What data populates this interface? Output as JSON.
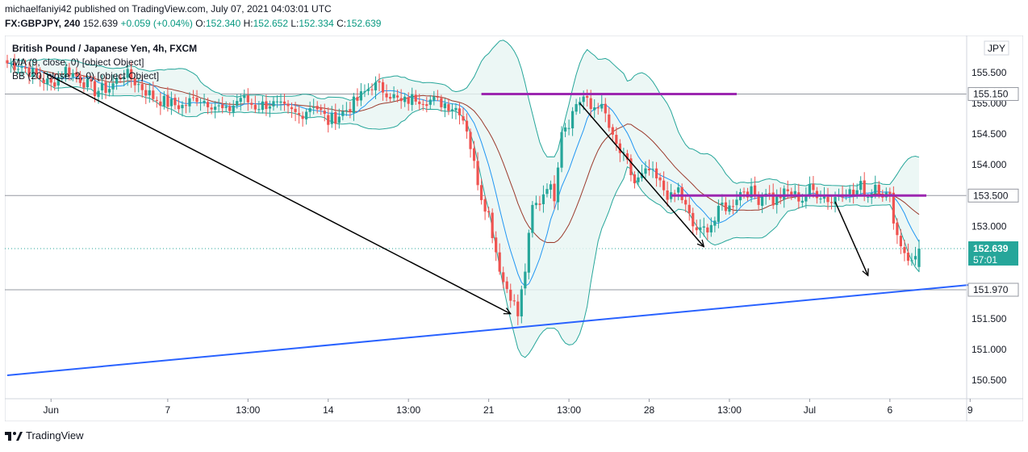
{
  "header": {
    "publish_text": "michaelfaniyi42 published on TradingView.com, July 07, 2021 04:03:01 UTC",
    "symbol": "FX:GBPJPY, 240",
    "last": "152.639",
    "change": "+0.059 (+0.04%)",
    "open_key": "O:",
    "open_val": "152.340",
    "high_key": "H:",
    "high_val": "152.652",
    "low_key": "L:",
    "low_val": "152.334",
    "close_key": "C:",
    "close_val": "152.639"
  },
  "legend": {
    "title": "British Pound / Japanese Yen, 4h, FXCM",
    "ma": "MA (9, close, 0) [object Object]",
    "bb": "BB (20, close, 2, 0) [object Object]"
  },
  "currency_badge": "JPY",
  "footer": {
    "brand": "TradingView"
  },
  "colors": {
    "up": "#26a69a",
    "down": "#ef5350",
    "bb_band": "#26a69a",
    "bb_fill": "#e7f5f2",
    "ma": "#2196f3",
    "basis": "#9b3a2c",
    "resistance": "#9c27b0",
    "support": "#2962ff",
    "arrow": "#000000",
    "price_label": "#26a69a"
  },
  "chart_data": {
    "type": "candlestick",
    "title": "British Pound / Japanese Yen, 4h, FXCM",
    "ylim": [
      150.2,
      156.1
    ],
    "y_ticks": [
      150.5,
      151.0,
      151.5,
      152.0,
      152.5,
      153.0,
      153.5,
      154.0,
      154.5,
      155.0,
      155.5
    ],
    "y_tick_labels": [
      "150.500",
      "151.000",
      "151.500",
      "152.000",
      "152.500",
      "153.000",
      "153.500",
      "154.000",
      "154.500",
      "155.000",
      "155.500"
    ],
    "x_ticks": [
      "Jun",
      "7",
      "13:00",
      "14",
      "13:00",
      "21",
      "13:00",
      "28",
      "13:00",
      "Jul",
      "6",
      "9"
    ],
    "x_tick_bar_index": [
      12,
      44,
      66,
      88,
      110,
      132,
      154,
      176,
      198,
      220,
      242,
      264
    ],
    "horizontal_levels": [
      {
        "value": 155.15,
        "label": "155.150"
      },
      {
        "value": 153.5,
        "label": "153.500"
      },
      {
        "value": 151.97,
        "label": "151.970"
      }
    ],
    "current_price": {
      "value": 152.639,
      "label": "152.639",
      "countdown": "57:01"
    },
    "resistance_segments": [
      {
        "from_bar": 130,
        "to_bar": 200,
        "value": 155.15
      },
      {
        "from_bar": 182,
        "to_bar": 252,
        "value": 153.5
      }
    ],
    "support_trendline": {
      "from_bar": 0,
      "from_value": 150.58,
      "to_bar": 264,
      "to_value": 152.05
    },
    "trend_arrows": [
      {
        "from_bar": 10,
        "from_value": 155.5,
        "to_bar": 138,
        "to_value": 151.58
      },
      {
        "from_bar": 157,
        "from_value": 155.0,
        "to_bar": 191,
        "to_value": 152.67
      },
      {
        "from_bar": 227,
        "from_value": 153.4,
        "to_bar": 236,
        "to_value": 152.2
      }
    ],
    "close_anchors": [
      [
        0,
        155.65
      ],
      [
        4,
        155.6
      ],
      [
        8,
        155.45
      ],
      [
        12,
        155.3
      ],
      [
        16,
        155.55
      ],
      [
        20,
        155.4
      ],
      [
        24,
        155.2
      ],
      [
        28,
        155.25
      ],
      [
        32,
        155.5
      ],
      [
        36,
        155.3
      ],
      [
        40,
        155.1
      ],
      [
        44,
        155.0
      ],
      [
        48,
        154.95
      ],
      [
        52,
        155.1
      ],
      [
        56,
        155.0
      ],
      [
        60,
        154.85
      ],
      [
        64,
        155.1
      ],
      [
        68,
        154.95
      ],
      [
        72,
        155.0
      ],
      [
        76,
        154.9
      ],
      [
        80,
        154.8
      ],
      [
        84,
        155.0
      ],
      [
        88,
        154.7
      ],
      [
        92,
        154.85
      ],
      [
        96,
        155.05
      ],
      [
        100,
        155.3
      ],
      [
        104,
        155.2
      ],
      [
        108,
        155.0
      ],
      [
        112,
        155.1
      ],
      [
        116,
        155.05
      ],
      [
        120,
        155.0
      ],
      [
        124,
        154.9
      ],
      [
        126,
        154.6
      ],
      [
        128,
        154.0
      ],
      [
        130,
        153.5
      ],
      [
        132,
        153.2
      ],
      [
        134,
        152.6
      ],
      [
        136,
        152.1
      ],
      [
        138,
        151.9
      ],
      [
        140,
        151.55
      ],
      [
        142,
        152.3
      ],
      [
        144,
        153.3
      ],
      [
        146,
        153.4
      ],
      [
        148,
        153.7
      ],
      [
        150,
        153.5
      ],
      [
        152,
        154.6
      ],
      [
        154,
        154.7
      ],
      [
        156,
        155.0
      ],
      [
        158,
        155.1
      ],
      [
        160,
        154.9
      ],
      [
        162,
        155.0
      ],
      [
        164,
        154.8
      ],
      [
        166,
        154.4
      ],
      [
        168,
        154.2
      ],
      [
        170,
        154.0
      ],
      [
        172,
        153.7
      ],
      [
        174,
        153.8
      ],
      [
        176,
        153.9
      ],
      [
        178,
        153.75
      ],
      [
        180,
        153.6
      ],
      [
        182,
        153.45
      ],
      [
        184,
        153.6
      ],
      [
        186,
        153.3
      ],
      [
        188,
        153.0
      ],
      [
        190,
        152.9
      ],
      [
        192,
        153.0
      ],
      [
        194,
        153.1
      ],
      [
        196,
        153.35
      ],
      [
        198,
        153.3
      ],
      [
        200,
        153.5
      ],
      [
        202,
        153.6
      ],
      [
        204,
        153.55
      ],
      [
        206,
        153.45
      ],
      [
        208,
        153.6
      ],
      [
        210,
        153.4
      ],
      [
        212,
        153.5
      ],
      [
        214,
        153.55
      ],
      [
        216,
        153.5
      ],
      [
        218,
        153.45
      ],
      [
        220,
        153.6
      ],
      [
        222,
        153.55
      ],
      [
        224,
        153.5
      ],
      [
        226,
        153.4
      ],
      [
        228,
        153.55
      ],
      [
        230,
        153.6
      ],
      [
        232,
        153.5
      ],
      [
        234,
        153.65
      ],
      [
        236,
        153.5
      ],
      [
        238,
        153.7
      ],
      [
        240,
        153.55
      ],
      [
        242,
        153.45
      ],
      [
        244,
        152.85
      ],
      [
        246,
        152.6
      ],
      [
        248,
        152.4
      ],
      [
        250,
        152.639
      ]
    ]
  }
}
